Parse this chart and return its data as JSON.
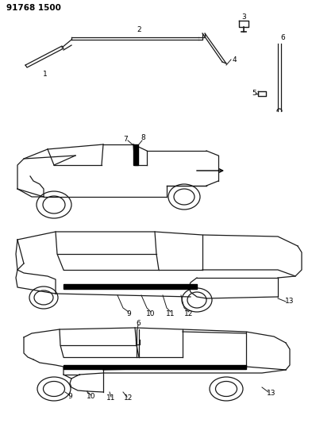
{
  "title": "91768 1500",
  "bg_color": "#ffffff",
  "line_color": "#1a1a1a",
  "fig_width": 3.93,
  "fig_height": 5.33,
  "dpi": 100
}
